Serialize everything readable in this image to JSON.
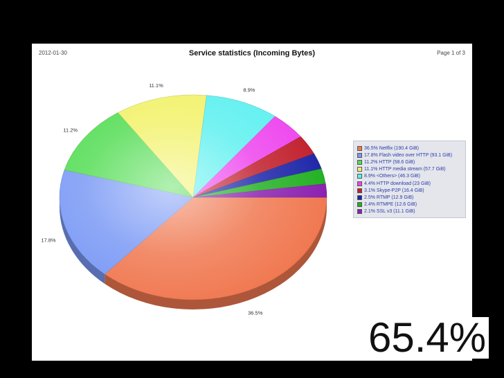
{
  "report": {
    "date": "2012-01-30",
    "title": "Service statistics (Incoming Bytes)",
    "page": "Page 1 of 3"
  },
  "overlay_text": "65.4%",
  "chart_data": {
    "type": "pie",
    "title": "Service statistics (Incoming Bytes)",
    "slices": [
      {
        "label": "36.5% Netflix (190.4 GiB)",
        "value": 36.5,
        "slice_label": "36.5%",
        "color": "#f07850"
      },
      {
        "label": "17.8% Flash video over HTTP (93.1 GiB)",
        "value": 17.8,
        "slice_label": "17.8%",
        "color": "#7a99f5"
      },
      {
        "label": "11.2% HTTP (58.6 GiB)",
        "value": 11.2,
        "slice_label": "11.2%",
        "color": "#55dd55"
      },
      {
        "label": "11.1% HTTP media stream (57.7 GiB)",
        "value": 11.1,
        "slice_label": "11.1%",
        "color": "#f2f26a"
      },
      {
        "label": "8.9% <Others> (46.3 GiB)",
        "value": 8.9,
        "slice_label": "8.9%",
        "color": "#5ef0f0"
      },
      {
        "label": "4.4% HTTP download (23 GiB)",
        "value": 4.4,
        "slice_label": "",
        "color": "#ee44ee"
      },
      {
        "label": "3.1% Skype-P2P (16.4 GiB)",
        "value": 3.1,
        "slice_label": "",
        "color": "#c01e2a"
      },
      {
        "label": "2.5% RTMP (12.9 GiB)",
        "value": 2.5,
        "slice_label": "",
        "color": "#1c24a8"
      },
      {
        "label": "2.4% RTMPE (12.6 GiB)",
        "value": 2.4,
        "slice_label": "",
        "color": "#22b022"
      },
      {
        "label": "2.1% SSL v3 (11.1 GiB)",
        "value": 2.1,
        "slice_label": "",
        "color": "#8a1fb0"
      }
    ],
    "legend_position": "right",
    "style": "3d-tilted"
  }
}
